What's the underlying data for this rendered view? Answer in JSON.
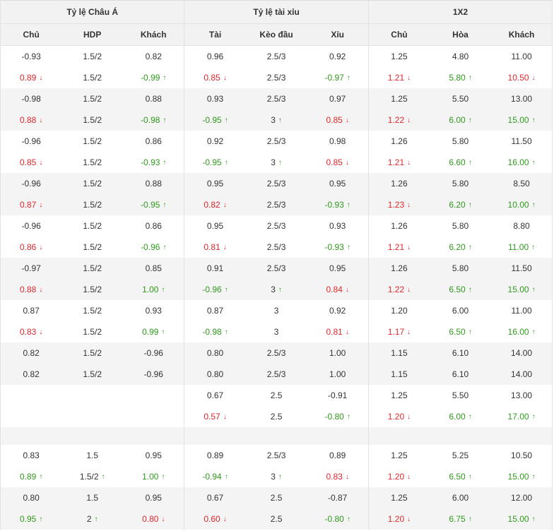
{
  "headers": {
    "groups": [
      "Tỷ lệ Châu Á",
      "Tỷ lệ tài xỉu",
      "1X2"
    ],
    "columns": [
      "Chủ",
      "HDP",
      "Khách",
      "Tài",
      "Kèo đầu",
      "Xỉu",
      "Chủ",
      "Hòa",
      "Khách"
    ]
  },
  "colors": {
    "up": "#2f9a1d",
    "down": "#e0272b",
    "shade": "#f4f4f4"
  },
  "icons": {
    "up": "arrow-up-icon",
    "down": "arrow-down-icon"
  },
  "rows": [
    {
      "shade": false,
      "cells": [
        {
          "v": "-0.93"
        },
        {
          "v": "1.5/2"
        },
        {
          "v": "0.82"
        },
        {
          "v": "0.96"
        },
        {
          "v": "2.5/3"
        },
        {
          "v": "0.92"
        },
        {
          "v": "1.25"
        },
        {
          "v": "4.80"
        },
        {
          "v": "11.00"
        }
      ]
    },
    {
      "shade": false,
      "cells": [
        {
          "v": "0.89",
          "t": "down"
        },
        {
          "v": "1.5/2"
        },
        {
          "v": "-0.99",
          "t": "up"
        },
        {
          "v": "0.85",
          "t": "down"
        },
        {
          "v": "2.5/3"
        },
        {
          "v": "-0.97",
          "t": "up"
        },
        {
          "v": "1.21",
          "t": "down"
        },
        {
          "v": "5.80",
          "t": "up"
        },
        {
          "v": "10.50",
          "t": "down"
        }
      ]
    },
    {
      "shade": true,
      "cells": [
        {
          "v": "-0.98"
        },
        {
          "v": "1.5/2"
        },
        {
          "v": "0.88"
        },
        {
          "v": "0.93"
        },
        {
          "v": "2.5/3"
        },
        {
          "v": "0.97"
        },
        {
          "v": "1.25"
        },
        {
          "v": "5.50"
        },
        {
          "v": "13.00"
        }
      ]
    },
    {
      "shade": true,
      "cells": [
        {
          "v": "0.88",
          "t": "down"
        },
        {
          "v": "1.5/2"
        },
        {
          "v": "-0.98",
          "t": "up"
        },
        {
          "v": "-0.95",
          "t": "up"
        },
        {
          "v": "3",
          "t": "up"
        },
        {
          "v": "0.85",
          "t": "down"
        },
        {
          "v": "1.22",
          "t": "down"
        },
        {
          "v": "6.00",
          "t": "up"
        },
        {
          "v": "15.00",
          "t": "up"
        }
      ]
    },
    {
      "shade": false,
      "cells": [
        {
          "v": "-0.96"
        },
        {
          "v": "1.5/2"
        },
        {
          "v": "0.86"
        },
        {
          "v": "0.92"
        },
        {
          "v": "2.5/3"
        },
        {
          "v": "0.98"
        },
        {
          "v": "1.26"
        },
        {
          "v": "5.80"
        },
        {
          "v": "11.50"
        }
      ]
    },
    {
      "shade": false,
      "cells": [
        {
          "v": "0.85",
          "t": "down"
        },
        {
          "v": "1.5/2"
        },
        {
          "v": "-0.93",
          "t": "up"
        },
        {
          "v": "-0.95",
          "t": "up"
        },
        {
          "v": "3",
          "t": "up"
        },
        {
          "v": "0.85",
          "t": "down"
        },
        {
          "v": "1.21",
          "t": "down"
        },
        {
          "v": "6.60",
          "t": "up"
        },
        {
          "v": "16.00",
          "t": "up"
        }
      ]
    },
    {
      "shade": true,
      "cells": [
        {
          "v": "-0.96"
        },
        {
          "v": "1.5/2"
        },
        {
          "v": "0.88"
        },
        {
          "v": "0.95"
        },
        {
          "v": "2.5/3"
        },
        {
          "v": "0.95"
        },
        {
          "v": "1.26"
        },
        {
          "v": "5.80"
        },
        {
          "v": "8.50"
        }
      ]
    },
    {
      "shade": true,
      "cells": [
        {
          "v": "0.87",
          "t": "down"
        },
        {
          "v": "1.5/2"
        },
        {
          "v": "-0.95",
          "t": "up"
        },
        {
          "v": "0.82",
          "t": "down"
        },
        {
          "v": "2.5/3"
        },
        {
          "v": "-0.93",
          "t": "up"
        },
        {
          "v": "1.23",
          "t": "down"
        },
        {
          "v": "6.20",
          "t": "up"
        },
        {
          "v": "10.00",
          "t": "up"
        }
      ]
    },
    {
      "shade": false,
      "cells": [
        {
          "v": "-0.96"
        },
        {
          "v": "1.5/2"
        },
        {
          "v": "0.86"
        },
        {
          "v": "0.95"
        },
        {
          "v": "2.5/3"
        },
        {
          "v": "0.93"
        },
        {
          "v": "1.26"
        },
        {
          "v": "5.80"
        },
        {
          "v": "8.80"
        }
      ]
    },
    {
      "shade": false,
      "cells": [
        {
          "v": "0.86",
          "t": "down"
        },
        {
          "v": "1.5/2"
        },
        {
          "v": "-0.96",
          "t": "up"
        },
        {
          "v": "0.81",
          "t": "down"
        },
        {
          "v": "2.5/3"
        },
        {
          "v": "-0.93",
          "t": "up"
        },
        {
          "v": "1.21",
          "t": "down"
        },
        {
          "v": "6.20",
          "t": "up"
        },
        {
          "v": "11.00",
          "t": "up"
        }
      ]
    },
    {
      "shade": true,
      "cells": [
        {
          "v": "-0.97"
        },
        {
          "v": "1.5/2"
        },
        {
          "v": "0.85"
        },
        {
          "v": "0.91"
        },
        {
          "v": "2.5/3"
        },
        {
          "v": "0.95"
        },
        {
          "v": "1.26"
        },
        {
          "v": "5.80"
        },
        {
          "v": "11.50"
        }
      ]
    },
    {
      "shade": true,
      "cells": [
        {
          "v": "0.88",
          "t": "down"
        },
        {
          "v": "1.5/2"
        },
        {
          "v": "1.00",
          "t": "up"
        },
        {
          "v": "-0.96",
          "t": "up"
        },
        {
          "v": "3",
          "t": "up"
        },
        {
          "v": "0.84",
          "t": "down"
        },
        {
          "v": "1.22",
          "t": "down"
        },
        {
          "v": "6.50",
          "t": "up"
        },
        {
          "v": "15.00",
          "t": "up"
        }
      ]
    },
    {
      "shade": false,
      "cells": [
        {
          "v": "0.87"
        },
        {
          "v": "1.5/2"
        },
        {
          "v": "0.93"
        },
        {
          "v": "0.87"
        },
        {
          "v": "3"
        },
        {
          "v": "0.92"
        },
        {
          "v": "1.20"
        },
        {
          "v": "6.00"
        },
        {
          "v": "11.00"
        }
      ]
    },
    {
      "shade": false,
      "cells": [
        {
          "v": "0.83",
          "t": "down"
        },
        {
          "v": "1.5/2"
        },
        {
          "v": "0.99",
          "t": "up"
        },
        {
          "v": "-0.98",
          "t": "up"
        },
        {
          "v": "3"
        },
        {
          "v": "0.81",
          "t": "down"
        },
        {
          "v": "1.17",
          "t": "down"
        },
        {
          "v": "6.50",
          "t": "up"
        },
        {
          "v": "16.00",
          "t": "up"
        }
      ]
    },
    {
      "shade": true,
      "cells": [
        {
          "v": "0.82"
        },
        {
          "v": "1.5/2"
        },
        {
          "v": "-0.96"
        },
        {
          "v": "0.80"
        },
        {
          "v": "2.5/3"
        },
        {
          "v": "1.00"
        },
        {
          "v": "1.15"
        },
        {
          "v": "6.10"
        },
        {
          "v": "14.00"
        }
      ]
    },
    {
      "shade": true,
      "cells": [
        {
          "v": "0.82"
        },
        {
          "v": "1.5/2"
        },
        {
          "v": "-0.96"
        },
        {
          "v": "0.80"
        },
        {
          "v": "2.5/3"
        },
        {
          "v": "1.00"
        },
        {
          "v": "1.15"
        },
        {
          "v": "6.10"
        },
        {
          "v": "14.00"
        }
      ]
    },
    {
      "shade": false,
      "cells": [
        {
          "v": ""
        },
        {
          "v": ""
        },
        {
          "v": ""
        },
        {
          "v": "0.67"
        },
        {
          "v": "2.5"
        },
        {
          "v": "-0.91"
        },
        {
          "v": "1.25"
        },
        {
          "v": "5.50"
        },
        {
          "v": "13.00"
        }
      ]
    },
    {
      "shade": false,
      "cells": [
        {
          "v": ""
        },
        {
          "v": ""
        },
        {
          "v": ""
        },
        {
          "v": "0.57",
          "t": "down"
        },
        {
          "v": "2.5"
        },
        {
          "v": "-0.80",
          "t": "up"
        },
        {
          "v": "1.20",
          "t": "down"
        },
        {
          "v": "6.00",
          "t": "up"
        },
        {
          "v": "17.00",
          "t": "up"
        }
      ]
    },
    {
      "shade": true,
      "gap": true,
      "cells": [
        {
          "v": ""
        },
        {
          "v": ""
        },
        {
          "v": ""
        },
        {
          "v": ""
        },
        {
          "v": ""
        },
        {
          "v": ""
        },
        {
          "v": ""
        },
        {
          "v": ""
        },
        {
          "v": ""
        }
      ]
    },
    {
      "shade": false,
      "cells": [
        {
          "v": "0.83"
        },
        {
          "v": "1.5"
        },
        {
          "v": "0.95"
        },
        {
          "v": "0.89"
        },
        {
          "v": "2.5/3"
        },
        {
          "v": "0.89"
        },
        {
          "v": "1.25"
        },
        {
          "v": "5.25"
        },
        {
          "v": "10.50"
        }
      ]
    },
    {
      "shade": false,
      "cells": [
        {
          "v": "0.89",
          "t": "up"
        },
        {
          "v": "1.5/2",
          "t": "up"
        },
        {
          "v": "1.00",
          "t": "up"
        },
        {
          "v": "-0.94",
          "t": "up"
        },
        {
          "v": "3",
          "t": "up"
        },
        {
          "v": "0.83",
          "t": "down"
        },
        {
          "v": "1.20",
          "t": "down"
        },
        {
          "v": "6.50",
          "t": "up"
        },
        {
          "v": "15.00",
          "t": "up"
        }
      ]
    },
    {
      "shade": true,
      "cells": [
        {
          "v": "0.80"
        },
        {
          "v": "1.5"
        },
        {
          "v": "0.95"
        },
        {
          "v": "0.67"
        },
        {
          "v": "2.5"
        },
        {
          "v": "-0.87"
        },
        {
          "v": "1.25"
        },
        {
          "v": "6.00"
        },
        {
          "v": "12.00"
        }
      ]
    },
    {
      "shade": true,
      "cells": [
        {
          "v": "0.95",
          "t": "up"
        },
        {
          "v": "2",
          "t": "up"
        },
        {
          "v": "0.80",
          "t": "down"
        },
        {
          "v": "0.60",
          "t": "down"
        },
        {
          "v": "2.5"
        },
        {
          "v": "-0.80",
          "t": "up"
        },
        {
          "v": "1.20",
          "t": "down"
        },
        {
          "v": "6.75",
          "t": "up"
        },
        {
          "v": "15.00",
          "t": "up"
        }
      ]
    }
  ]
}
